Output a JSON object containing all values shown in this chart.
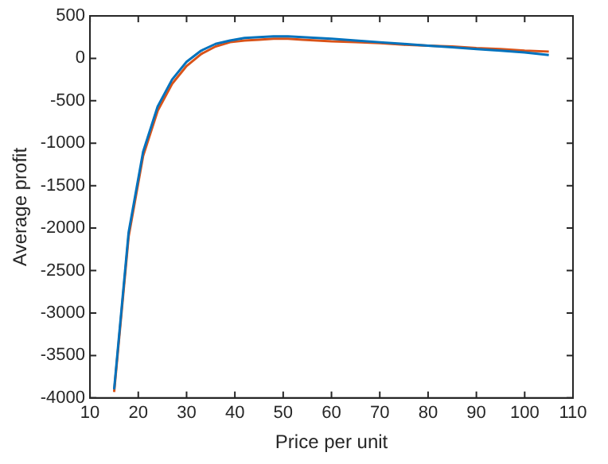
{
  "chart_data": {
    "type": "line",
    "xlabel": "Price per unit",
    "ylabel": "Average profit",
    "xlim": [
      10,
      110
    ],
    "xticks": [
      10,
      20,
      30,
      40,
      50,
      60,
      70,
      80,
      90,
      100,
      110
    ],
    "ylim": [
      -4000,
      500
    ],
    "yticks": [
      -4000,
      -3500,
      -3000,
      -2500,
      -2000,
      -1500,
      -1000,
      -500,
      0,
      500
    ],
    "grid": false,
    "legend": false,
    "marker": "none",
    "line_style": "solid",
    "x": [
      15,
      18,
      21,
      24,
      27,
      30,
      33,
      36,
      39,
      42,
      45,
      48,
      51,
      54,
      57,
      60,
      65,
      70,
      75,
      80,
      85,
      90,
      95,
      100,
      105
    ],
    "series": [
      {
        "color": "#0072bd",
        "values": [
          -3900,
          -2050,
          -1100,
          -570,
          -250,
          -40,
          90,
          170,
          210,
          240,
          250,
          260,
          260,
          250,
          240,
          230,
          210,
          190,
          170,
          150,
          130,
          110,
          90,
          70,
          40
        ]
      },
      {
        "color": "#d95319",
        "values": [
          -3930,
          -2100,
          -1150,
          -620,
          -300,
          -90,
          50,
          140,
          190,
          210,
          220,
          230,
          230,
          220,
          210,
          200,
          190,
          180,
          160,
          150,
          140,
          120,
          110,
          90,
          80
        ]
      }
    ]
  }
}
